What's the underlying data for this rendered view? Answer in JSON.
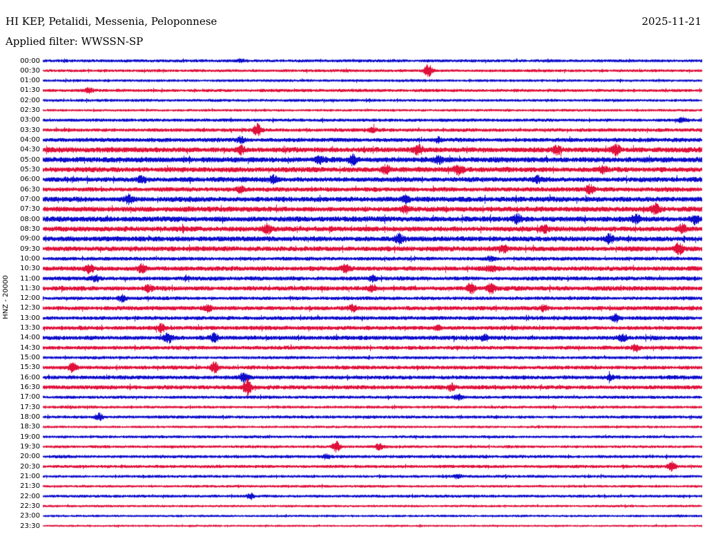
{
  "header": {
    "station_line": "HI KEP, Petalidi, Messenia, Peloponnese",
    "date": "2025-11-21",
    "filter_line": "Applied filter: WWSSN-SP"
  },
  "y_axis_label": "HNZ - 20000",
  "colors": {
    "red": "#e0103a",
    "blue": "#0b0bcc",
    "text": "#000000",
    "background": "#ffffff"
  },
  "chart_data": {
    "type": "seismogram",
    "title": "HI KEP, Petalidi, Messenia, Peloponnese",
    "date": "2025-11-21",
    "applied_filter": "WWSSN-SP",
    "channel_scale_label": "HNZ - 20000",
    "minutes_per_row": 30,
    "trace_color_pattern": [
      "blue",
      "red"
    ],
    "rows": [
      {
        "time": "00:00",
        "color": "blue",
        "activity": 0.28,
        "bursts": [
          [
            0.3,
            2
          ]
        ]
      },
      {
        "time": "00:30",
        "color": "red",
        "activity": 0.26,
        "bursts": [
          [
            0.585,
            9
          ]
        ]
      },
      {
        "time": "01:00",
        "color": "blue",
        "activity": 0.24,
        "bursts": []
      },
      {
        "time": "01:30",
        "color": "red",
        "activity": 0.3,
        "bursts": [
          [
            0.07,
            3
          ]
        ]
      },
      {
        "time": "02:00",
        "color": "blue",
        "activity": 0.26,
        "bursts": []
      },
      {
        "time": "02:30",
        "color": "red",
        "activity": 0.22,
        "bursts": []
      },
      {
        "time": "03:00",
        "color": "blue",
        "activity": 0.32,
        "bursts": [
          [
            0.97,
            3
          ]
        ]
      },
      {
        "time": "03:30",
        "color": "red",
        "activity": 0.36,
        "bursts": [
          [
            0.325,
            8
          ],
          [
            0.5,
            3
          ]
        ]
      },
      {
        "time": "04:00",
        "color": "blue",
        "activity": 0.45,
        "bursts": [
          [
            0.3,
            4
          ],
          [
            0.6,
            3
          ]
        ]
      },
      {
        "time": "04:30",
        "color": "red",
        "activity": 0.58,
        "bursts": [
          [
            0.3,
            5
          ],
          [
            0.57,
            6
          ],
          [
            0.78,
            5
          ],
          [
            0.87,
            6
          ]
        ]
      },
      {
        "time": "05:00",
        "color": "blue",
        "activity": 0.62,
        "bursts": [
          [
            0.42,
            5
          ],
          [
            0.47,
            6
          ],
          [
            0.6,
            4
          ]
        ]
      },
      {
        "time": "05:30",
        "color": "red",
        "activity": 0.58,
        "bursts": [
          [
            0.52,
            5
          ],
          [
            0.63,
            6
          ],
          [
            0.85,
            4
          ]
        ]
      },
      {
        "time": "06:00",
        "color": "blue",
        "activity": 0.55,
        "bursts": [
          [
            0.15,
            4
          ],
          [
            0.35,
            4
          ],
          [
            0.75,
            4
          ]
        ]
      },
      {
        "time": "06:30",
        "color": "red",
        "activity": 0.5,
        "bursts": [
          [
            0.3,
            4
          ],
          [
            0.83,
            5
          ]
        ]
      },
      {
        "time": "07:00",
        "color": "blue",
        "activity": 0.58,
        "bursts": [
          [
            0.13,
            5
          ],
          [
            0.55,
            4
          ]
        ]
      },
      {
        "time": "07:30",
        "color": "red",
        "activity": 0.58,
        "bursts": [
          [
            0.55,
            4
          ],
          [
            0.93,
            7
          ]
        ]
      },
      {
        "time": "08:00",
        "color": "blue",
        "activity": 0.62,
        "bursts": [
          [
            0.72,
            5
          ],
          [
            0.9,
            5
          ],
          [
            0.99,
            6
          ]
        ]
      },
      {
        "time": "08:30",
        "color": "red",
        "activity": 0.58,
        "bursts": [
          [
            0.34,
            6
          ],
          [
            0.76,
            5
          ],
          [
            0.97,
            6
          ]
        ]
      },
      {
        "time": "09:00",
        "color": "blue",
        "activity": 0.58,
        "bursts": [
          [
            0.54,
            6
          ],
          [
            0.86,
            5
          ]
        ]
      },
      {
        "time": "09:30",
        "color": "red",
        "activity": 0.54,
        "bursts": [
          [
            0.7,
            4
          ],
          [
            0.965,
            7
          ]
        ]
      },
      {
        "time": "10:00",
        "color": "blue",
        "activity": 0.4,
        "bursts": [
          [
            0.68,
            3
          ]
        ]
      },
      {
        "time": "10:30",
        "color": "red",
        "activity": 0.52,
        "bursts": [
          [
            0.07,
            5
          ],
          [
            0.15,
            5
          ],
          [
            0.46,
            5
          ],
          [
            0.68,
            3
          ]
        ]
      },
      {
        "time": "11:00",
        "color": "blue",
        "activity": 0.44,
        "bursts": [
          [
            0.08,
            4
          ],
          [
            0.5,
            3
          ]
        ]
      },
      {
        "time": "11:30",
        "color": "red",
        "activity": 0.5,
        "bursts": [
          [
            0.16,
            4
          ],
          [
            0.5,
            4
          ],
          [
            0.65,
            7
          ],
          [
            0.68,
            6
          ]
        ]
      },
      {
        "time": "12:00",
        "color": "blue",
        "activity": 0.36,
        "bursts": [
          [
            0.12,
            4
          ]
        ]
      },
      {
        "time": "12:30",
        "color": "red",
        "activity": 0.46,
        "bursts": [
          [
            0.25,
            4
          ],
          [
            0.47,
            4
          ],
          [
            0.76,
            4
          ]
        ]
      },
      {
        "time": "13:00",
        "color": "blue",
        "activity": 0.4,
        "bursts": [
          [
            0.87,
            5
          ]
        ]
      },
      {
        "time": "13:30",
        "color": "red",
        "activity": 0.44,
        "bursts": [
          [
            0.18,
            5
          ],
          [
            0.6,
            3
          ]
        ]
      },
      {
        "time": "14:00",
        "color": "blue",
        "activity": 0.46,
        "bursts": [
          [
            0.19,
            6
          ],
          [
            0.26,
            5
          ],
          [
            0.67,
            4
          ],
          [
            0.88,
            4
          ]
        ]
      },
      {
        "time": "14:30",
        "color": "red",
        "activity": 0.4,
        "bursts": [
          [
            0.9,
            4
          ]
        ]
      },
      {
        "time": "15:00",
        "color": "blue",
        "activity": 0.3,
        "bursts": []
      },
      {
        "time": "15:30",
        "color": "red",
        "activity": 0.4,
        "bursts": [
          [
            0.045,
            6
          ],
          [
            0.26,
            7
          ]
        ]
      },
      {
        "time": "16:00",
        "color": "blue",
        "activity": 0.4,
        "bursts": [
          [
            0.305,
            7
          ],
          [
            0.86,
            3
          ]
        ]
      },
      {
        "time": "16:30",
        "color": "red",
        "activity": 0.44,
        "bursts": [
          [
            0.31,
            10
          ],
          [
            0.62,
            4
          ]
        ]
      },
      {
        "time": "17:00",
        "color": "blue",
        "activity": 0.3,
        "bursts": [
          [
            0.63,
            4
          ]
        ]
      },
      {
        "time": "17:30",
        "color": "red",
        "activity": 0.26,
        "bursts": []
      },
      {
        "time": "18:00",
        "color": "blue",
        "activity": 0.3,
        "bursts": [
          [
            0.085,
            5
          ]
        ]
      },
      {
        "time": "18:30",
        "color": "red",
        "activity": 0.22,
        "bursts": []
      },
      {
        "time": "19:00",
        "color": "blue",
        "activity": 0.26,
        "bursts": []
      },
      {
        "time": "19:30",
        "color": "red",
        "activity": 0.26,
        "bursts": [
          [
            0.445,
            7
          ],
          [
            0.51,
            4
          ]
        ]
      },
      {
        "time": "20:00",
        "color": "blue",
        "activity": 0.3,
        "bursts": [
          [
            0.43,
            3
          ]
        ]
      },
      {
        "time": "20:30",
        "color": "red",
        "activity": 0.3,
        "bursts": [
          [
            0.955,
            6
          ]
        ]
      },
      {
        "time": "21:00",
        "color": "blue",
        "activity": 0.26,
        "bursts": [
          [
            0.63,
            3
          ]
        ]
      },
      {
        "time": "21:30",
        "color": "red",
        "activity": 0.22,
        "bursts": []
      },
      {
        "time": "22:00",
        "color": "blue",
        "activity": 0.26,
        "bursts": [
          [
            0.315,
            4
          ]
        ]
      },
      {
        "time": "22:30",
        "color": "red",
        "activity": 0.2,
        "bursts": []
      },
      {
        "time": "23:00",
        "color": "blue",
        "activity": 0.2,
        "bursts": []
      },
      {
        "time": "23:30",
        "color": "red",
        "activity": 0.16,
        "bursts": []
      }
    ]
  }
}
